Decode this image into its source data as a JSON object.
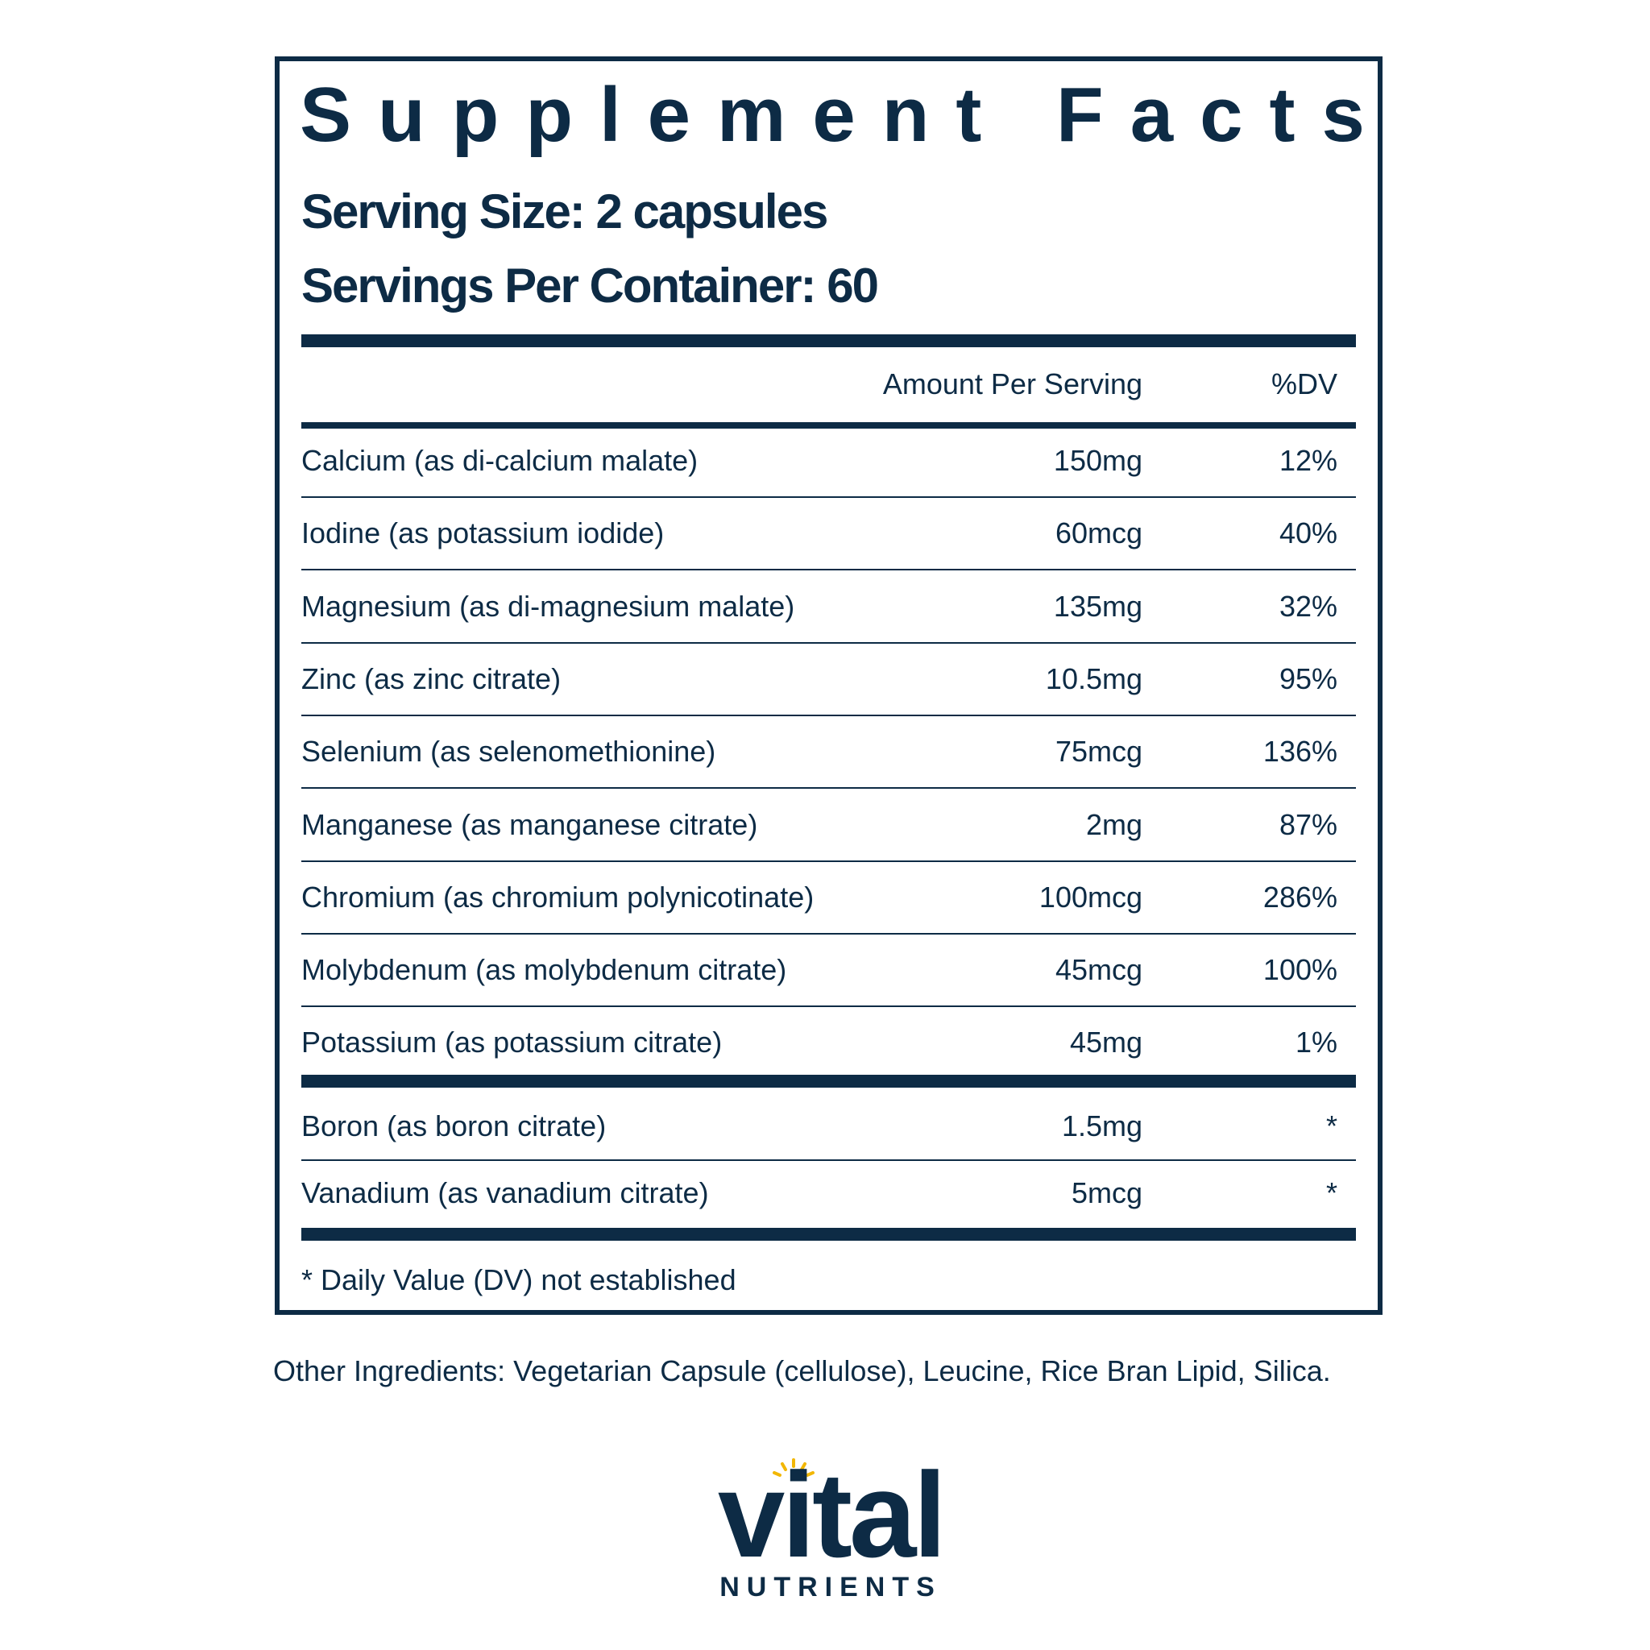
{
  "header": {
    "title": "Supplement Facts",
    "serving_size": "Serving Size: 2 capsules",
    "servings_per_container": "Servings Per Container: 60"
  },
  "table": {
    "columns": [
      "Amount Per Serving",
      "%DV"
    ],
    "rows": [
      [
        "Calcium (as di-calcium malate)",
        "150mg",
        "12%"
      ],
      [
        "Iodine (as potassium iodide)",
        "60mcg",
        "40%"
      ],
      [
        "Magnesium (as di-magnesium malate)",
        "135mg",
        "32%"
      ],
      [
        "Zinc (as zinc citrate)",
        "10.5mg",
        "95%"
      ],
      [
        "Selenium (as selenomethionine)",
        "75mcg",
        "136%"
      ],
      [
        "Manganese (as manganese citrate)",
        "2mg",
        "87%"
      ],
      [
        "Chromium (as chromium polynicotinate)",
        "100mcg",
        "286%"
      ],
      [
        "Molybdenum (as molybdenum citrate)",
        "45mcg",
        "100%"
      ],
      [
        "Potassium (as potassium citrate)",
        "45mg",
        "1%"
      ]
    ],
    "other_rows": [
      [
        "Boron (as boron citrate)",
        "1.5mg",
        "*"
      ],
      [
        "Vanadium (as vanadium citrate)",
        "5mcg",
        "*"
      ]
    ],
    "footnote": "* Daily Value (DV) not established"
  },
  "other_ingredients": "Other Ingredients: Vegetarian Capsule (cellulose), Leucine, Rice Bran Lipid, Silica.",
  "logo": {
    "name": "vital",
    "tagline": "NUTRIENTS"
  }
}
